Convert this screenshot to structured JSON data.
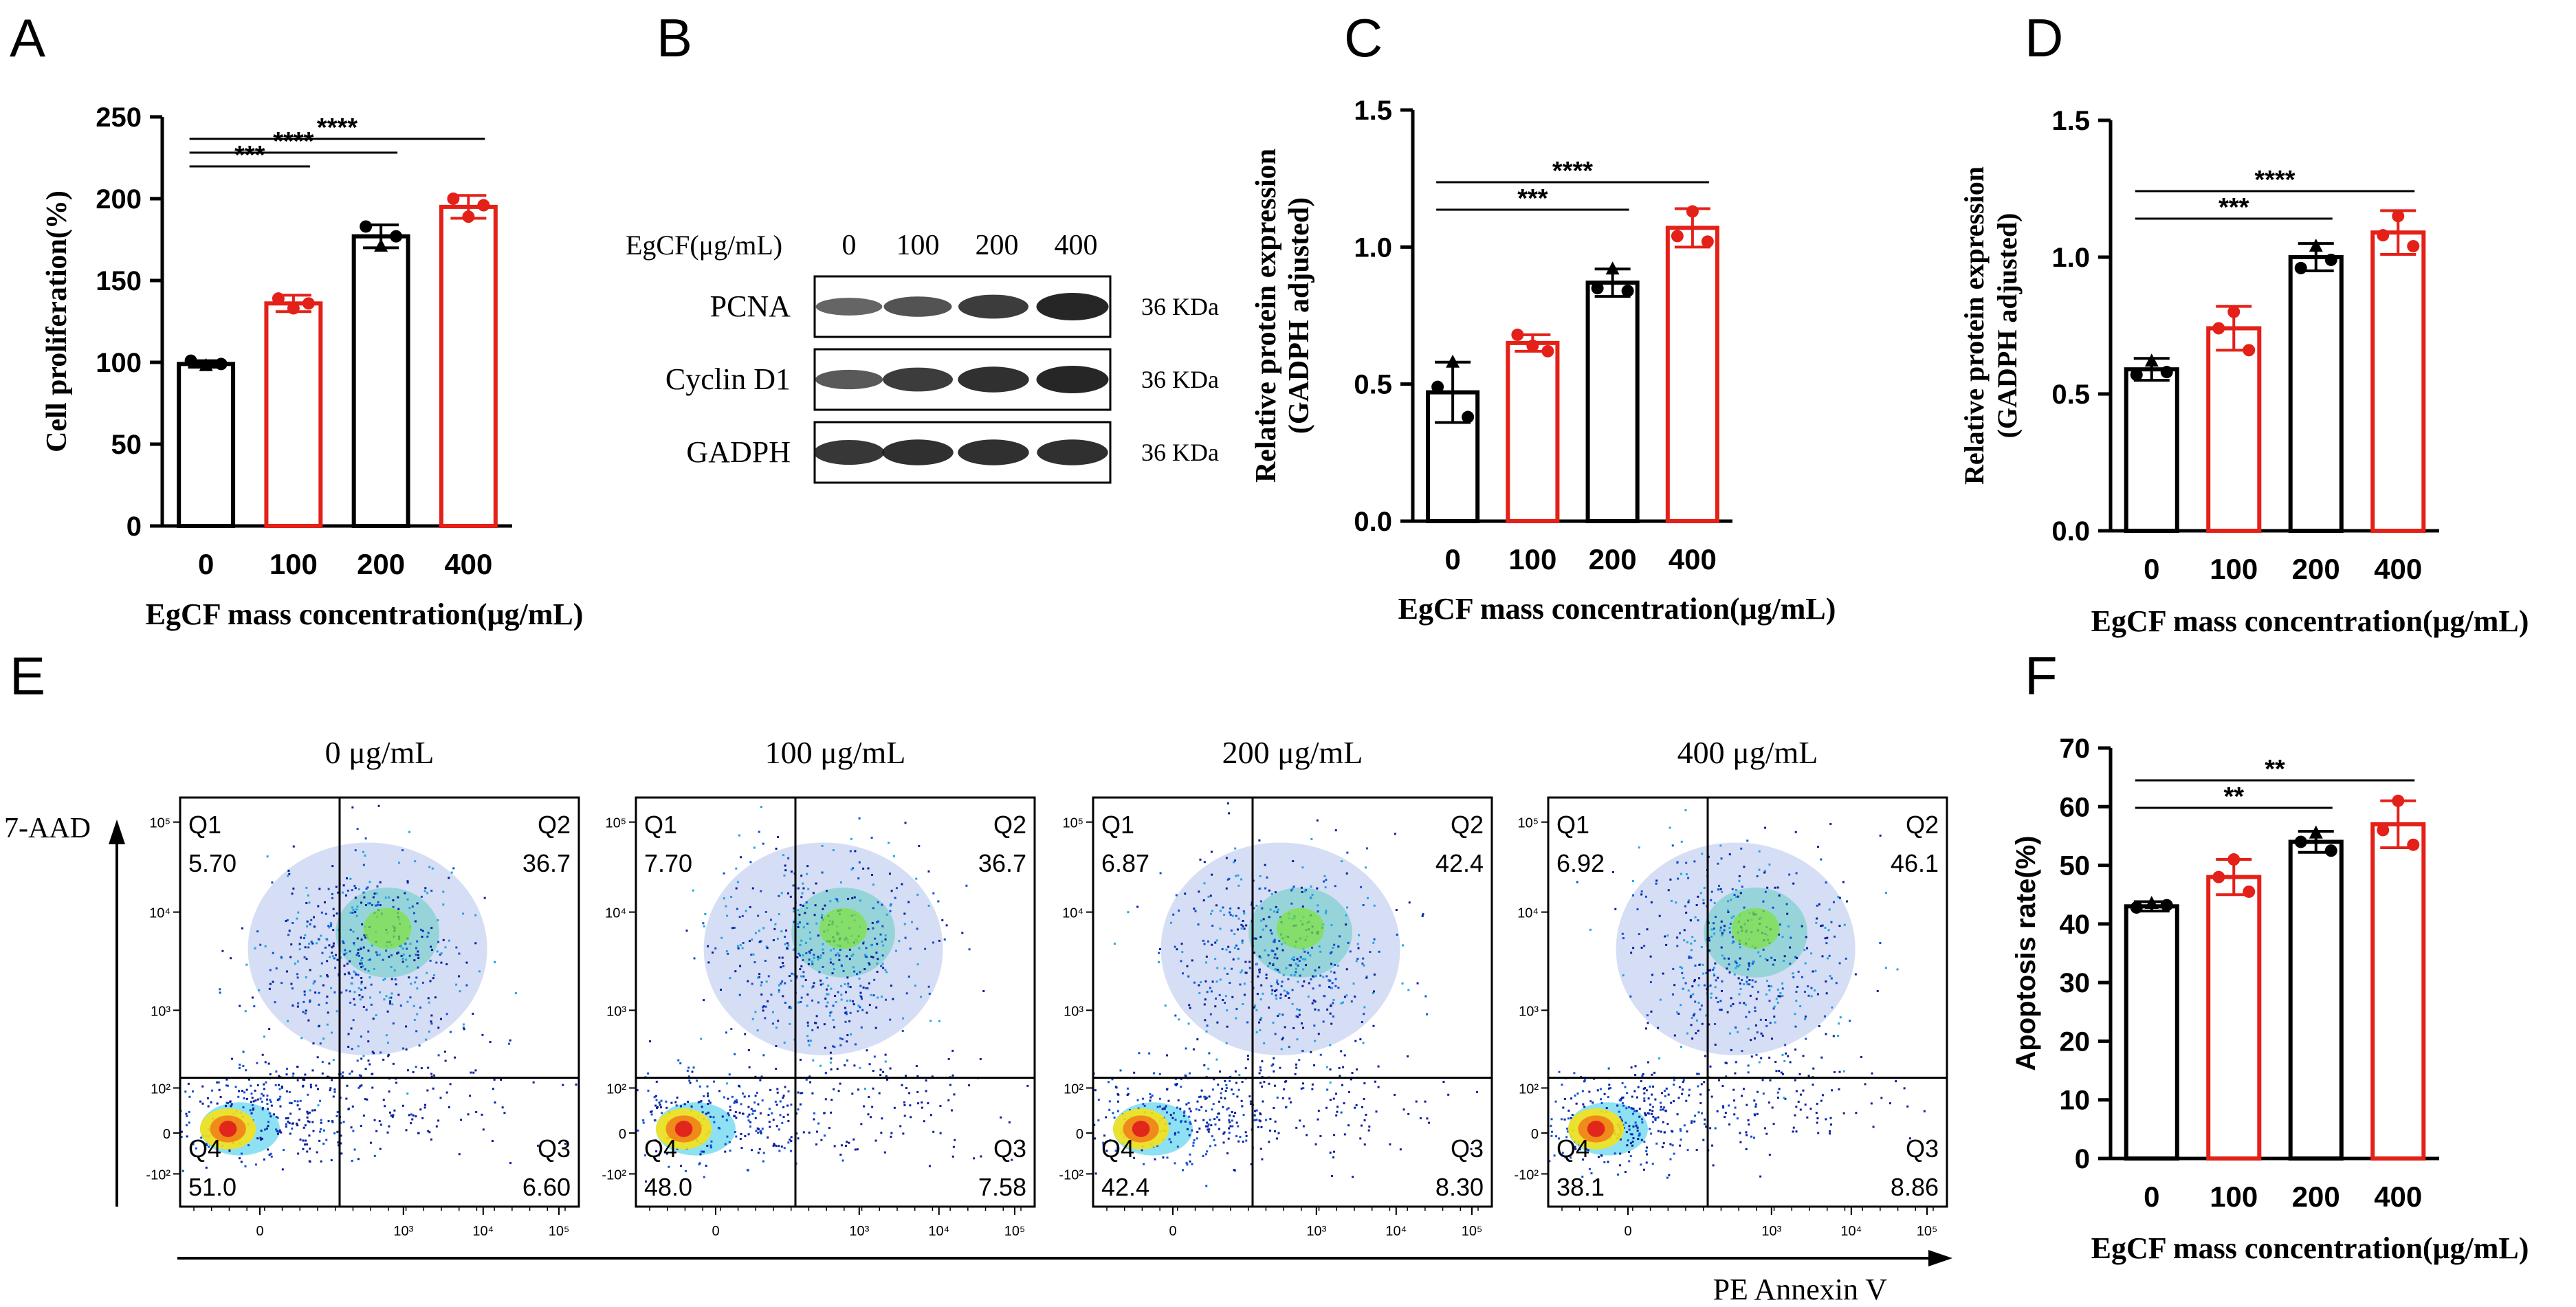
{
  "colors": {
    "black": "#000000",
    "red": "#e32119",
    "gel": "#1a1a1a"
  },
  "panel_letters": [
    "A",
    "B",
    "C",
    "D",
    "E",
    "F"
  ],
  "chart_data": [
    {
      "id": "A",
      "type": "bar",
      "ylabel": "Cell proliferation(%)",
      "xlabel": "EgCF mass concentration(μg/mL)",
      "categories": [
        "0",
        "100",
        "200",
        "400"
      ],
      "values": [
        99,
        136,
        177,
        195
      ],
      "errors": [
        2,
        5,
        7,
        7
      ],
      "points": [
        [
          98,
          101,
          99
        ],
        [
          133,
          139,
          136
        ],
        [
          171,
          183,
          177
        ],
        [
          189,
          200,
          196
        ]
      ],
      "bar_colors": [
        "#000000",
        "#e32119",
        "#000000",
        "#e32119"
      ],
      "ylim": [
        0,
        250
      ],
      "yticks": [
        "0",
        "50",
        "100",
        "150",
        "200",
        "250"
      ],
      "significance": [
        {
          "from": 0,
          "to": 1,
          "label": "***"
        },
        {
          "from": 0,
          "to": 2,
          "label": "****"
        },
        {
          "from": 0,
          "to": 3,
          "label": "****"
        }
      ]
    },
    {
      "id": "C",
      "type": "bar",
      "ylabel": "Relative protein expression (GADPH adjusted)",
      "ylabel_lines": [
        "Relative protein expression",
        "(GADPH adjusted)"
      ],
      "xlabel": "EgCF mass concentration(μg/mL)",
      "categories": [
        "0",
        "100",
        "200",
        "400"
      ],
      "values": [
        0.47,
        0.65,
        0.87,
        1.07
      ],
      "errors": [
        0.11,
        0.03,
        0.05,
        0.07
      ],
      "points": [
        [
          0.58,
          0.49,
          0.38
        ],
        [
          0.64,
          0.68,
          0.62
        ],
        [
          0.92,
          0.85,
          0.84
        ],
        [
          1.13,
          1.04,
          1.02
        ]
      ],
      "bar_colors": [
        "#000000",
        "#e32119",
        "#000000",
        "#e32119"
      ],
      "ylim": [
        0,
        1.5
      ],
      "yticks": [
        "0.0",
        "0.5",
        "1.0",
        "1.5"
      ],
      "significance": [
        {
          "from": 0,
          "to": 2,
          "label": "***"
        },
        {
          "from": 0,
          "to": 3,
          "label": "****"
        }
      ]
    },
    {
      "id": "D",
      "type": "bar",
      "ylabel": "Relative protein expression (GADPH adjusted)",
      "ylabel_lines": [
        "Relative protein expression",
        "(GADPH adjusted)"
      ],
      "xlabel": "EgCF mass concentration(μg/mL)",
      "categories": [
        "0",
        "100",
        "200",
        "400"
      ],
      "values": [
        0.59,
        0.74,
        1.0,
        1.09
      ],
      "errors": [
        0.04,
        0.08,
        0.05,
        0.08
      ],
      "points": [
        [
          0.62,
          0.57,
          0.58
        ],
        [
          0.8,
          0.74,
          0.66
        ],
        [
          1.04,
          0.96,
          0.99
        ],
        [
          1.15,
          1.08,
          1.04
        ]
      ],
      "bar_colors": [
        "#000000",
        "#e32119",
        "#000000",
        "#e32119"
      ],
      "ylim": [
        0,
        1.5
      ],
      "yticks": [
        "0.0",
        "0.5",
        "1.0",
        "1.5"
      ],
      "significance": [
        {
          "from": 0,
          "to": 2,
          "label": "***"
        },
        {
          "from": 0,
          "to": 3,
          "label": "****"
        }
      ]
    },
    {
      "id": "F",
      "type": "bar",
      "ylabel": "Apoptosis rate(%)",
      "xlabel": "EgCF mass concentration(μg/mL)",
      "categories": [
        "0",
        "100",
        "200",
        "400"
      ],
      "values": [
        43,
        48,
        54,
        57
      ],
      "errors": [
        0.8,
        3,
        1.8,
        4
      ],
      "points": [
        [
          43.5,
          42.8,
          43.2
        ],
        [
          51,
          48,
          45.5
        ],
        [
          55.5,
          54,
          52.5
        ],
        [
          61,
          56,
          53.5
        ]
      ],
      "bar_colors": [
        "#000000",
        "#e32119",
        "#000000",
        "#e32119"
      ],
      "ylim": [
        0,
        70
      ],
      "yticks": [
        "0",
        "10",
        "20",
        "30",
        "40",
        "50",
        "60",
        "70"
      ],
      "significance": [
        {
          "from": 0,
          "to": 2,
          "label": "**"
        },
        {
          "from": 0,
          "to": 3,
          "label": "**"
        }
      ]
    },
    {
      "id": "E",
      "type": "flow-cytometry",
      "xlabel": "PE Annexin V",
      "ylabel": "7-AAD",
      "plots": [
        {
          "title": "0 μg/mL",
          "q1": "5.70",
          "q2": "36.7",
          "q3": "6.60",
          "q4": "51.0"
        },
        {
          "title": "100 μg/mL",
          "q1": "7.70",
          "q2": "36.7",
          "q3": "7.58",
          "q4": "48.0"
        },
        {
          "title": "200 μg/mL",
          "q1": "6.87",
          "q2": "42.4",
          "q3": "8.30",
          "q4": "42.4"
        },
        {
          "title": "400 μg/mL",
          "q1": "6.92",
          "q2": "46.1",
          "q3": "8.86",
          "q4": "38.1"
        }
      ],
      "quadrant_names": [
        "Q1",
        "Q2",
        "Q3",
        "Q4"
      ],
      "y_tick_labels": [
        "10⁵",
        "10⁴",
        "10³",
        "10²",
        "0",
        "-10²"
      ],
      "x_tick_labels": [
        "0",
        "10³",
        "10⁴",
        "10⁵"
      ]
    }
  ],
  "western_blot": {
    "header_label": "EgCF(μg/mL)",
    "lanes": [
      "0",
      "100",
      "200",
      "400"
    ],
    "rows": [
      {
        "name": "PCNA",
        "size": "36 KDa",
        "intensity": [
          0.45,
          0.6,
          0.8,
          1.0
        ]
      },
      {
        "name": "Cyclin D1",
        "size": "36 KDa",
        "intensity": [
          0.55,
          0.8,
          0.9,
          1.0
        ]
      },
      {
        "name": "GADPH",
        "size": "36 KDa",
        "intensity": [
          0.85,
          0.9,
          0.9,
          0.9
        ]
      }
    ]
  }
}
